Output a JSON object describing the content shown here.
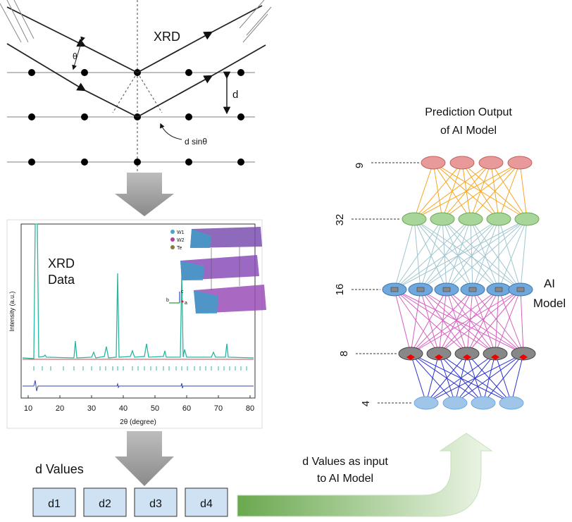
{
  "xrd_diagram": {
    "title": "XRD",
    "angle": "θ",
    "spacing": "d",
    "path_difference": "d sinθ"
  },
  "xrd_data": {
    "title": [
      "XRD",
      "Data"
    ],
    "y_label": "Intensity (a.u.)",
    "x_label": "2θ (degree)",
    "x_ticks": [
      10,
      20,
      30,
      40,
      50,
      60,
      70,
      80
    ],
    "legend": [
      "W1",
      "W2",
      "Te"
    ],
    "axes": [
      "c",
      "b",
      "a"
    ]
  },
  "d_values": {
    "title": "d Values",
    "items": [
      "d1",
      "d2",
      "d3",
      "d4"
    ]
  },
  "input_arrow": {
    "label": [
      "d Values as input",
      "to AI Model"
    ]
  },
  "model": {
    "title": [
      "Prediction Output",
      "of AI Model"
    ],
    "layer_sizes": [
      9,
      32,
      16,
      8,
      4
    ],
    "label": [
      "AI",
      "Model"
    ]
  }
}
